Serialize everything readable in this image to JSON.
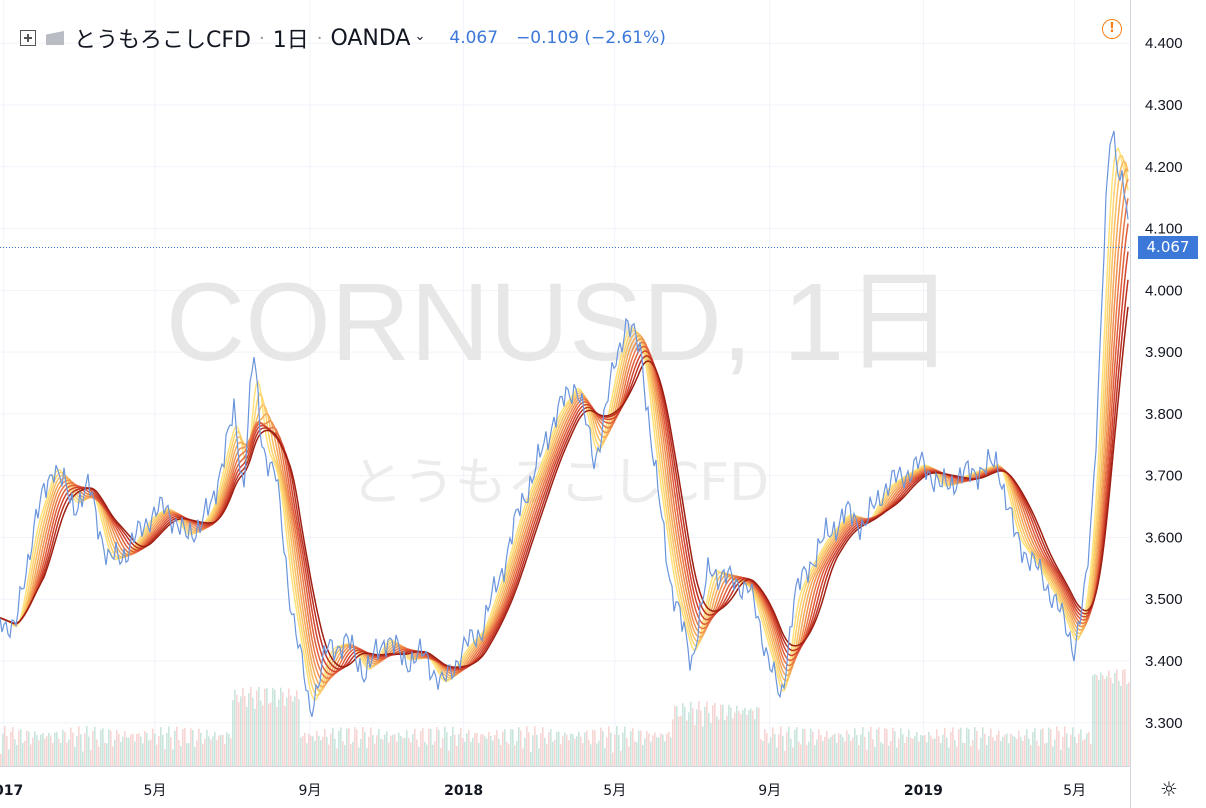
{
  "header": {
    "symbol_name": "とうもろこしCFD",
    "interval": "1日",
    "exchange": "OANDA",
    "last_price": "4.067",
    "change": "−0.109 (−2.61%)"
  },
  "watermark": {
    "line1": "CORNUSD, 1日",
    "line2": "とうもろこしCFD"
  },
  "price_tag": "4.067",
  "colors": {
    "price_line": "#6a95dc",
    "accent": "#3c78d8",
    "ribbon_fast": "#ffe27a",
    "ribbon_slow": "#9e1f12",
    "volume_up": "#9fcfc1",
    "volume_down": "#efb3b0",
    "alert": "#f57f17"
  },
  "chart_data": {
    "type": "line",
    "title": "CORNUSD, 1日",
    "ylim": [
      3.23,
      4.47
    ],
    "yticks": [
      3.3,
      3.4,
      3.5,
      3.6,
      3.7,
      3.8,
      3.9,
      4.0,
      4.1,
      4.2,
      4.3,
      4.4
    ],
    "ytick_labels": [
      "3.300",
      "3.400",
      "3.500",
      "3.600",
      "3.700",
      "3.800",
      "3.900",
      "4.000",
      "4.100",
      "4.200",
      "4.300",
      "4.400"
    ],
    "xlim": [
      "2016-12-29",
      "2019-06-14"
    ],
    "xticks": [
      {
        "date": "2017-01-01",
        "label": "2017"
      },
      {
        "date": "2017-05-01",
        "label": "5月"
      },
      {
        "date": "2017-09-01",
        "label": "9月"
      },
      {
        "date": "2018-01-01",
        "label": "2018"
      },
      {
        "date": "2018-05-01",
        "label": "5月"
      },
      {
        "date": "2018-09-01",
        "label": "9月"
      },
      {
        "date": "2019-01-01",
        "label": "2019"
      },
      {
        "date": "2019-05-01",
        "label": "5月"
      }
    ],
    "series": [
      {
        "name": "price",
        "x": [
          "2016-12-29",
          "2017-01-10",
          "2017-01-25",
          "2017-02-10",
          "2017-02-25",
          "2017-03-10",
          "2017-03-25",
          "2017-04-10",
          "2017-04-25",
          "2017-05-10",
          "2017-05-25",
          "2017-06-05",
          "2017-06-15",
          "2017-06-25",
          "2017-07-03",
          "2017-07-10",
          "2017-07-18",
          "2017-07-25",
          "2017-08-05",
          "2017-08-15",
          "2017-08-25",
          "2017-09-01",
          "2017-09-15",
          "2017-10-01",
          "2017-10-15",
          "2017-11-01",
          "2017-11-15",
          "2017-12-01",
          "2017-12-15",
          "2018-01-01",
          "2018-01-15",
          "2018-02-01",
          "2018-02-15",
          "2018-03-01",
          "2018-03-15",
          "2018-04-01",
          "2018-04-15",
          "2018-05-01",
          "2018-05-10",
          "2018-05-22",
          "2018-06-01",
          "2018-06-15",
          "2018-07-01",
          "2018-07-15",
          "2018-08-01",
          "2018-08-15",
          "2018-09-01",
          "2018-09-10",
          "2018-09-20",
          "2018-10-01",
          "2018-10-15",
          "2018-11-01",
          "2018-11-15",
          "2018-12-01",
          "2018-12-15",
          "2019-01-01",
          "2019-01-15",
          "2019-02-01",
          "2019-02-15",
          "2019-03-01",
          "2019-03-15",
          "2019-04-01",
          "2019-04-15",
          "2019-05-01",
          "2019-05-10",
          "2019-05-15",
          "2019-05-20",
          "2019-05-25",
          "2019-05-30",
          "2019-06-05",
          "2019-06-10",
          "2019-06-14"
        ],
        "values": [
          3.47,
          3.45,
          3.62,
          3.72,
          3.65,
          3.68,
          3.56,
          3.58,
          3.63,
          3.65,
          3.6,
          3.62,
          3.65,
          3.74,
          3.8,
          3.68,
          3.9,
          3.75,
          3.7,
          3.52,
          3.4,
          3.32,
          3.42,
          3.43,
          3.38,
          3.44,
          3.4,
          3.41,
          3.36,
          3.42,
          3.45,
          3.55,
          3.65,
          3.72,
          3.8,
          3.85,
          3.72,
          3.88,
          3.95,
          3.9,
          3.72,
          3.52,
          3.4,
          3.55,
          3.53,
          3.52,
          3.4,
          3.33,
          3.5,
          3.55,
          3.6,
          3.64,
          3.62,
          3.68,
          3.7,
          3.72,
          3.68,
          3.7,
          3.71,
          3.72,
          3.6,
          3.55,
          3.5,
          3.42,
          3.52,
          3.65,
          3.85,
          4.1,
          4.26,
          4.2,
          4.17,
          4.067
        ]
      }
    ],
    "ribbon": {
      "description": "Multiple moving averages ribbon from yellow (fast) to dark red (slow)"
    },
    "volume": "histogram at chart bottom",
    "grid": true
  }
}
